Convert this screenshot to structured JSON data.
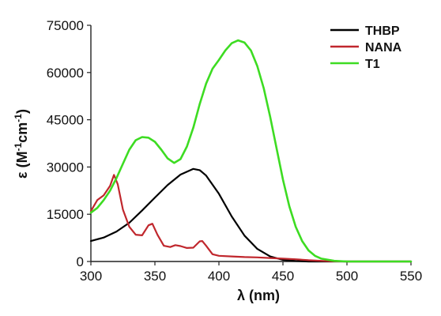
{
  "chart_data": {
    "type": "line",
    "xlabel": "λ (nm)",
    "ylabel_parts": {
      "epsilon": "ε (M",
      "exp1": "-1",
      "mid": "cm",
      "exp2": "-1",
      "close": ")"
    },
    "xlim": [
      300,
      550
    ],
    "ylim": [
      0,
      75000
    ],
    "x_ticks": [
      300,
      350,
      400,
      450,
      500,
      550
    ],
    "y_ticks": [
      0,
      15000,
      30000,
      45000,
      60000,
      75000
    ],
    "legend_position": "top-right",
    "grid": false,
    "series": [
      {
        "name": "THBP",
        "color": "#000000",
        "points": [
          [
            300,
            6500
          ],
          [
            310,
            7600
          ],
          [
            320,
            9500
          ],
          [
            330,
            12300
          ],
          [
            340,
            16200
          ],
          [
            350,
            20300
          ],
          [
            360,
            24300
          ],
          [
            370,
            27600
          ],
          [
            380,
            29400
          ],
          [
            385,
            29000
          ],
          [
            390,
            27300
          ],
          [
            400,
            21500
          ],
          [
            410,
            14300
          ],
          [
            420,
            8200
          ],
          [
            430,
            4000
          ],
          [
            440,
            1600
          ],
          [
            450,
            500
          ],
          [
            460,
            150
          ],
          [
            470,
            0
          ],
          [
            550,
            0
          ]
        ]
      },
      {
        "name": "NANA",
        "color": "#c0272d",
        "points": [
          [
            300,
            16000
          ],
          [
            305,
            19500
          ],
          [
            310,
            21000
          ],
          [
            315,
            24000
          ],
          [
            318,
            27500
          ],
          [
            321,
            24500
          ],
          [
            325,
            16500
          ],
          [
            330,
            11000
          ],
          [
            335,
            8500
          ],
          [
            340,
            8300
          ],
          [
            345,
            11500
          ],
          [
            348,
            12000
          ],
          [
            352,
            8500
          ],
          [
            357,
            5000
          ],
          [
            362,
            4600
          ],
          [
            366,
            5200
          ],
          [
            370,
            4900
          ],
          [
            375,
            4300
          ],
          [
            380,
            4400
          ],
          [
            385,
            6400
          ],
          [
            387,
            6500
          ],
          [
            390,
            5000
          ],
          [
            395,
            2300
          ],
          [
            400,
            1800
          ],
          [
            410,
            1600
          ],
          [
            420,
            1400
          ],
          [
            430,
            1300
          ],
          [
            440,
            1100
          ],
          [
            450,
            900
          ],
          [
            460,
            700
          ],
          [
            470,
            400
          ],
          [
            480,
            200
          ],
          [
            490,
            50
          ],
          [
            500,
            0
          ],
          [
            550,
            0
          ]
        ]
      },
      {
        "name": "T1",
        "color": "#3ddc22",
        "points": [
          [
            300,
            15500
          ],
          [
            305,
            17000
          ],
          [
            310,
            19500
          ],
          [
            315,
            22500
          ],
          [
            320,
            26500
          ],
          [
            325,
            31000
          ],
          [
            330,
            35500
          ],
          [
            335,
            38500
          ],
          [
            340,
            39500
          ],
          [
            345,
            39300
          ],
          [
            350,
            38000
          ],
          [
            355,
            35500
          ],
          [
            360,
            32700
          ],
          [
            365,
            31300
          ],
          [
            370,
            32500
          ],
          [
            375,
            36500
          ],
          [
            380,
            42500
          ],
          [
            385,
            50000
          ],
          [
            390,
            56500
          ],
          [
            395,
            61200
          ],
          [
            400,
            64000
          ],
          [
            405,
            67000
          ],
          [
            410,
            69300
          ],
          [
            415,
            70200
          ],
          [
            420,
            69500
          ],
          [
            425,
            67000
          ],
          [
            430,
            62000
          ],
          [
            435,
            55000
          ],
          [
            440,
            46000
          ],
          [
            445,
            36000
          ],
          [
            450,
            26000
          ],
          [
            455,
            17500
          ],
          [
            460,
            11000
          ],
          [
            465,
            6500
          ],
          [
            470,
            3500
          ],
          [
            475,
            1800
          ],
          [
            480,
            900
          ],
          [
            490,
            200
          ],
          [
            500,
            0
          ],
          [
            550,
            0
          ]
        ]
      }
    ]
  }
}
